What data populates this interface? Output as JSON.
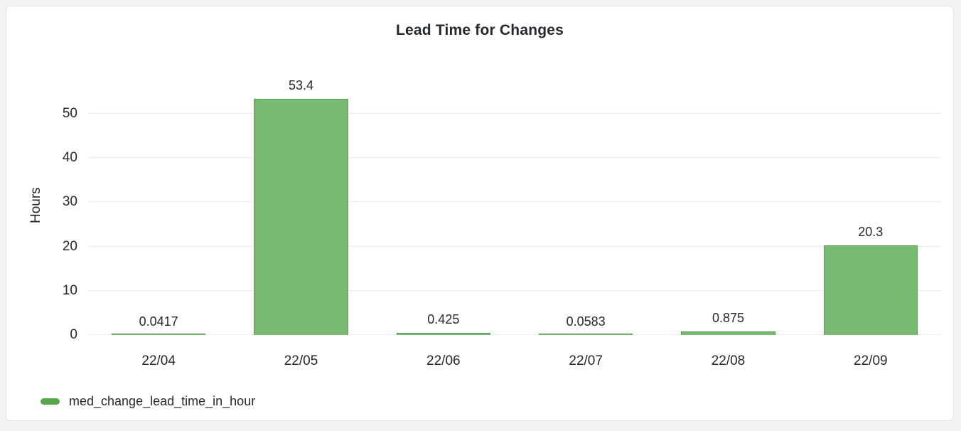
{
  "panel": {
    "title": "Lead Time for Changes"
  },
  "chart_data": {
    "type": "bar",
    "title": "Lead Time for Changes",
    "categories": [
      "22/04",
      "22/05",
      "22/06",
      "22/07",
      "22/08",
      "22/09"
    ],
    "series": [
      {
        "name": "med_change_lead_time_in_hour",
        "values": [
          0.0417,
          53.4,
          0.425,
          0.0583,
          0.875,
          20.3
        ]
      }
    ],
    "value_labels": [
      "0.0417",
      "53.4",
      "0.425",
      "0.0583",
      "0.875",
      "20.3"
    ],
    "xlabel": "",
    "ylabel": "Hours",
    "yticks": [
      0,
      10,
      20,
      30,
      40,
      50
    ],
    "ylim": [
      0,
      59.5
    ],
    "grid": true,
    "legend_position": "bottom-left",
    "colors": {
      "bar_fill": "#79b971",
      "bar_border": "#58a14e",
      "legend_swatch": "#57a64c",
      "gridline": "#ebedee",
      "text": "#24292e"
    }
  }
}
